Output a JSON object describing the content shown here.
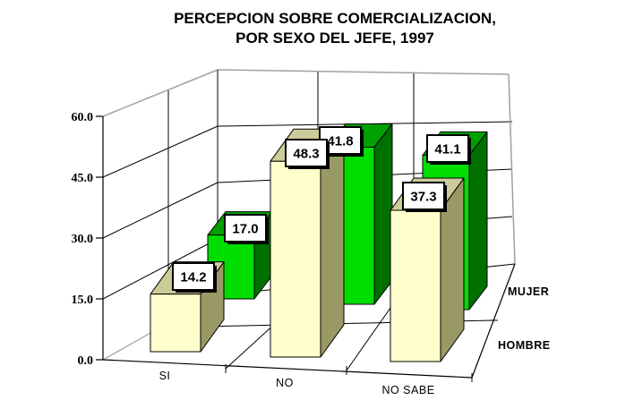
{
  "title_line1": "PERCEPCION SOBRE COMERCIALIZACION,",
  "title_line2": "POR SEXO DEL JEFE, 1997",
  "chart_data": {
    "type": "bar",
    "projection": "3d-column",
    "title": "PERCEPCION SOBRE COMERCIALIZACION, POR SEXO DEL JEFE, 1997",
    "categories": [
      "SI",
      "NO",
      "NO SABE"
    ],
    "series": [
      {
        "name": "HOMBRE",
        "values": [
          14.2,
          48.3,
          37.3
        ],
        "colors": {
          "front": "#FFFFCC",
          "top": "#CCCC99",
          "side": "#999966"
        }
      },
      {
        "name": "MUJER",
        "values": [
          17.0,
          41.8,
          41.1
        ],
        "colors": {
          "front": "#00DE00",
          "top": "#00A000",
          "side": "#007000"
        }
      }
    ],
    "value_labels": [
      [
        "14.2",
        "48.3",
        "37.3"
      ],
      [
        "17.0",
        "41.8",
        "41.1"
      ]
    ],
    "y_ticks": [
      "0.0",
      "15.0",
      "30.0",
      "45.0",
      "60.0"
    ],
    "ylim": [
      0,
      60
    ],
    "xlabel": "",
    "ylabel": "",
    "grid": true,
    "legend_position": "series-axis-right",
    "wall_color": "#FFFFFF",
    "gridline_color": "#000000",
    "edge_color": "#A0A0A0",
    "label_box": {
      "fill": "#FFFFFF",
      "border": "#000000",
      "shadow": "#000000"
    }
  }
}
